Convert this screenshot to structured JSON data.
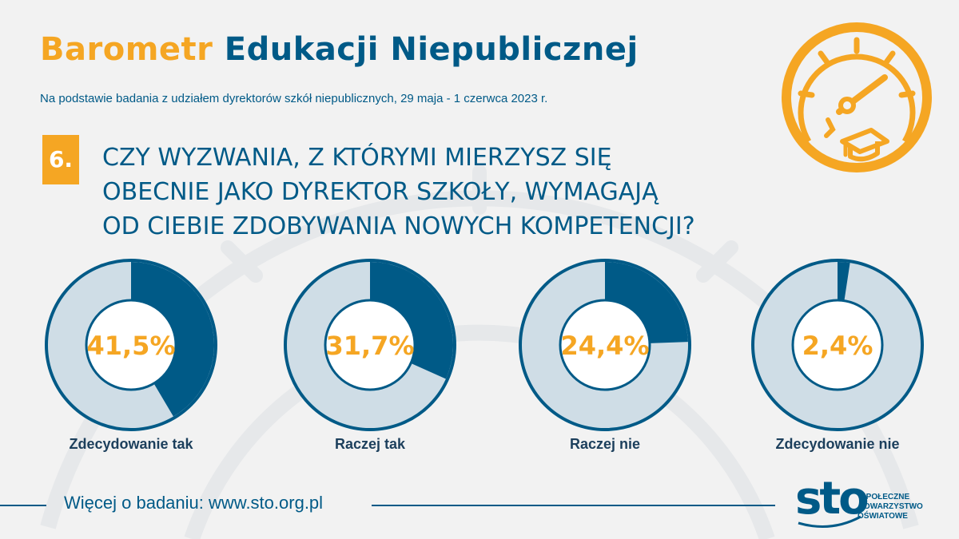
{
  "title": {
    "part1": "Barometr",
    "part2": "Edukacji Niepublicznej"
  },
  "subtitle": "Na podstawie badania z udziałem dyrektorów szkół niepublicznych, 29 maja - 1 czerwca 2023 r.",
  "question": {
    "number": "6.",
    "lines": [
      "CZY WYZWANIA, Z KTÓRYMI MIERZYSZ SIĘ",
      "OBECNIE JAKO DYREKTOR SZKOŁY, WYMAGAJĄ",
      "OD CIEBIE ZDOBYWANIA NOWYCH KOMPETENCJI?"
    ]
  },
  "chart_data": {
    "type": "pie",
    "categories": [
      "Zdecydowanie tak",
      "Raczej tak",
      "Raczej nie",
      "Zdecydowanie nie"
    ],
    "values": [
      41.5,
      31.7,
      24.4,
      2.4
    ],
    "value_labels": [
      "41,5%",
      "31,7%",
      "24,4%",
      "2,4%"
    ],
    "colors": {
      "filled": "#005a87",
      "remainder": "#cfdde6",
      "value_text": "#f5a623"
    }
  },
  "footer": {
    "text": "Więcej o badaniu: www.sto.org.pl",
    "logo_mark": "sto",
    "logo_text": [
      "SPOŁECZNE",
      "TOWARZYSTWO",
      "OŚWIATOWE"
    ]
  },
  "icons": {
    "gauge": "gauge-graduation-cap-icon"
  }
}
